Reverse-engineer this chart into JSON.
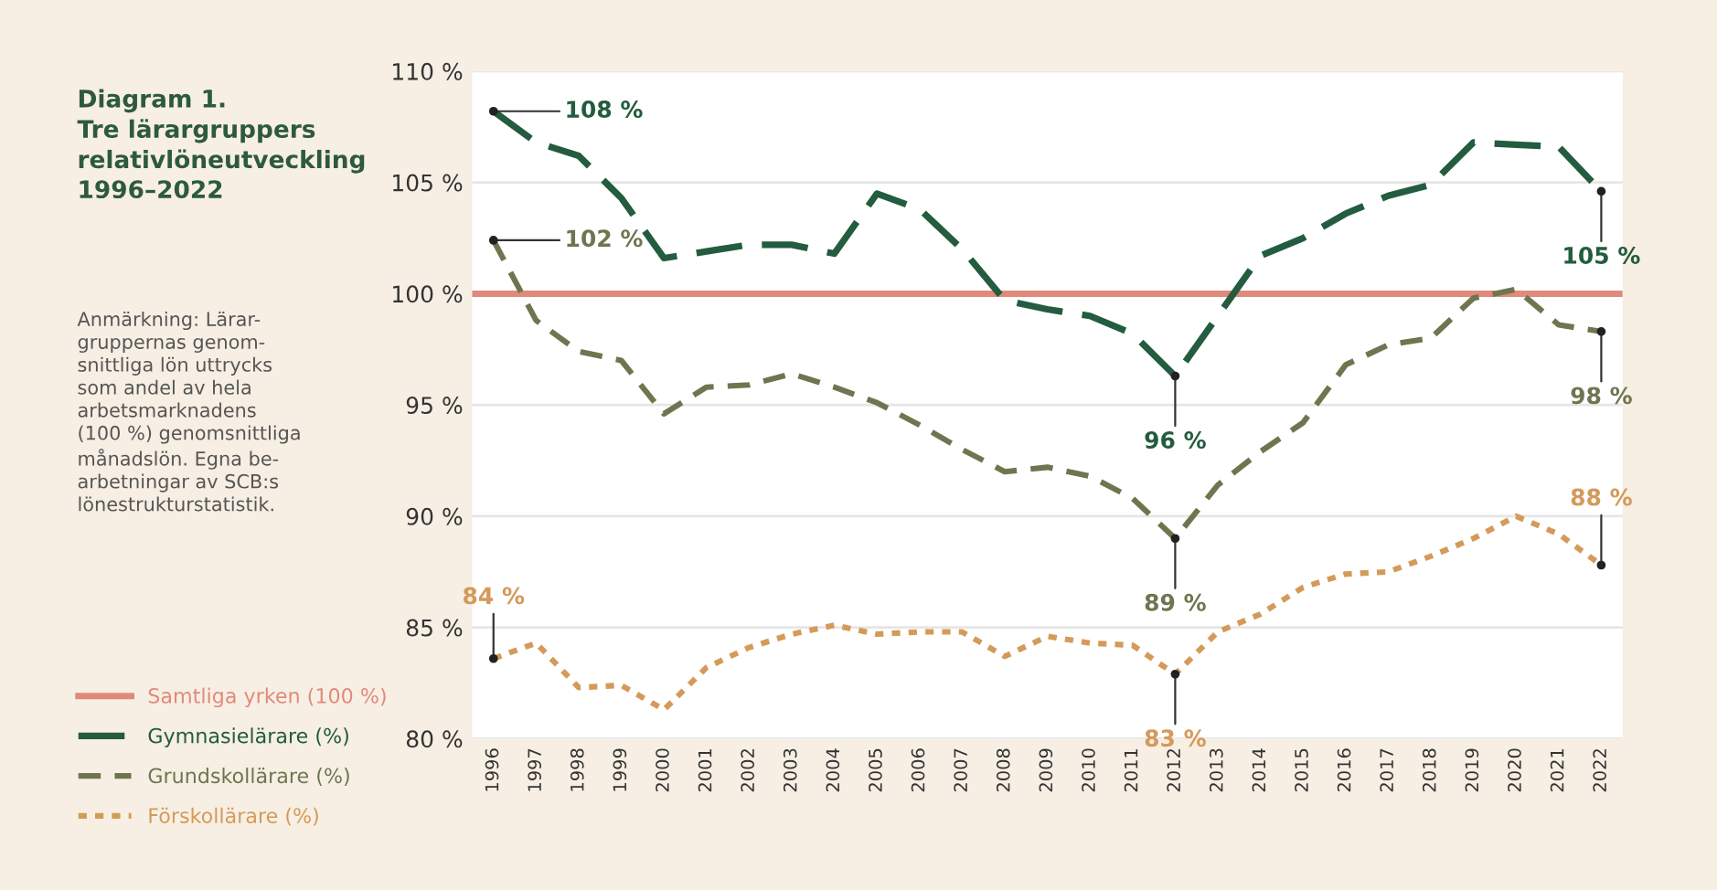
{
  "chart_data": {
    "type": "line",
    "title": "Diagram 1.\nTre lärargruppers\nrelativlöneutveckling\n1996–2022",
    "subtitle": "Anmärkning: Lärar-\ngruppernas genom-\nsnittliga lön uttrycks\nsom andel av hela\narbetsmarknadens\n(100 %) genomsnittliga\nmånadslön. Egna be-\narbetningar av SCB:s\nlönestrukturstatistik.",
    "categories": [
      "1996",
      "1997",
      "1998",
      "1999",
      "2000",
      "2001",
      "2002",
      "2003",
      "2004",
      "2005",
      "2006",
      "2007",
      "2008",
      "2009",
      "2010",
      "2011",
      "2012",
      "2013",
      "2014",
      "2015",
      "2016",
      "2017",
      "2018",
      "2019",
      "2020",
      "2021",
      "2022"
    ],
    "series": [
      {
        "name": "Gymnasielärare (%)",
        "color": "#235c3e",
        "line_style": "dashed",
        "values": [
          108.2,
          106.8,
          106.2,
          104.3,
          101.6,
          101.9,
          102.2,
          102.2,
          101.8,
          104.5,
          103.8,
          102.0,
          99.7,
          99.3,
          99.0,
          98.2,
          96.3,
          99.0,
          101.7,
          102.5,
          103.6,
          104.4,
          104.9,
          106.8,
          106.7,
          106.6,
          104.6
        ]
      },
      {
        "name": "Grundskollärare (%)",
        "color": "#6e7650",
        "line_style": "dashed",
        "values": [
          102.4,
          98.8,
          97.4,
          97.0,
          94.6,
          95.8,
          95.9,
          96.4,
          95.8,
          95.1,
          94.1,
          93.0,
          92.0,
          92.2,
          91.8,
          90.8,
          89.0,
          91.4,
          92.9,
          94.2,
          96.8,
          97.7,
          98.0,
          99.8,
          100.2,
          98.6,
          98.3
        ]
      },
      {
        "name": "Förskollärare (%)",
        "color": "#d49a5a",
        "line_style": "dotted",
        "values": [
          83.6,
          84.3,
          82.3,
          82.4,
          81.3,
          83.2,
          84.1,
          84.7,
          85.1,
          84.7,
          84.8,
          84.8,
          83.7,
          84.6,
          84.3,
          84.2,
          82.9,
          84.8,
          85.6,
          86.8,
          87.4,
          87.5,
          88.2,
          89.0,
          90.0,
          89.2,
          87.8
        ]
      }
    ],
    "ref_lines": [
      {
        "axis": "y",
        "value": 100,
        "label": "Samtliga yrken (100 %)",
        "color": "#e08a7c",
        "line_style": "solid"
      }
    ],
    "ylim": [
      80,
      110
    ],
    "yticks": [
      {
        "value": 80,
        "label": "80 %"
      },
      {
        "value": 85,
        "label": "85 %"
      },
      {
        "value": 90,
        "label": "90 %"
      },
      {
        "value": 95,
        "label": "95 %"
      },
      {
        "value": 100,
        "label": "100 %"
      },
      {
        "value": 105,
        "label": "105 %"
      },
      {
        "value": 110,
        "label": "110 %"
      }
    ],
    "grid": "y",
    "legend": "left",
    "annotations": [
      {
        "text": "108 %",
        "x": "1996",
        "y": 108.2
      },
      {
        "text": "102 %",
        "x": "1996",
        "y": 102.4
      },
      {
        "text": "84 %",
        "x": "1996",
        "y": 83.6
      },
      {
        "text": "96 %",
        "x": "2012",
        "y": 96.3
      },
      {
        "text": "89 %",
        "x": "2012",
        "y": 89.0
      },
      {
        "text": "83 %",
        "x": "2012",
        "y": 82.9
      },
      {
        "text": "105 %",
        "x": "2022",
        "y": 104.6
      },
      {
        "text": "98 %",
        "x": "2022",
        "y": 98.3
      },
      {
        "text": "88 %",
        "x": "2022",
        "y": 87.8
      }
    ]
  }
}
